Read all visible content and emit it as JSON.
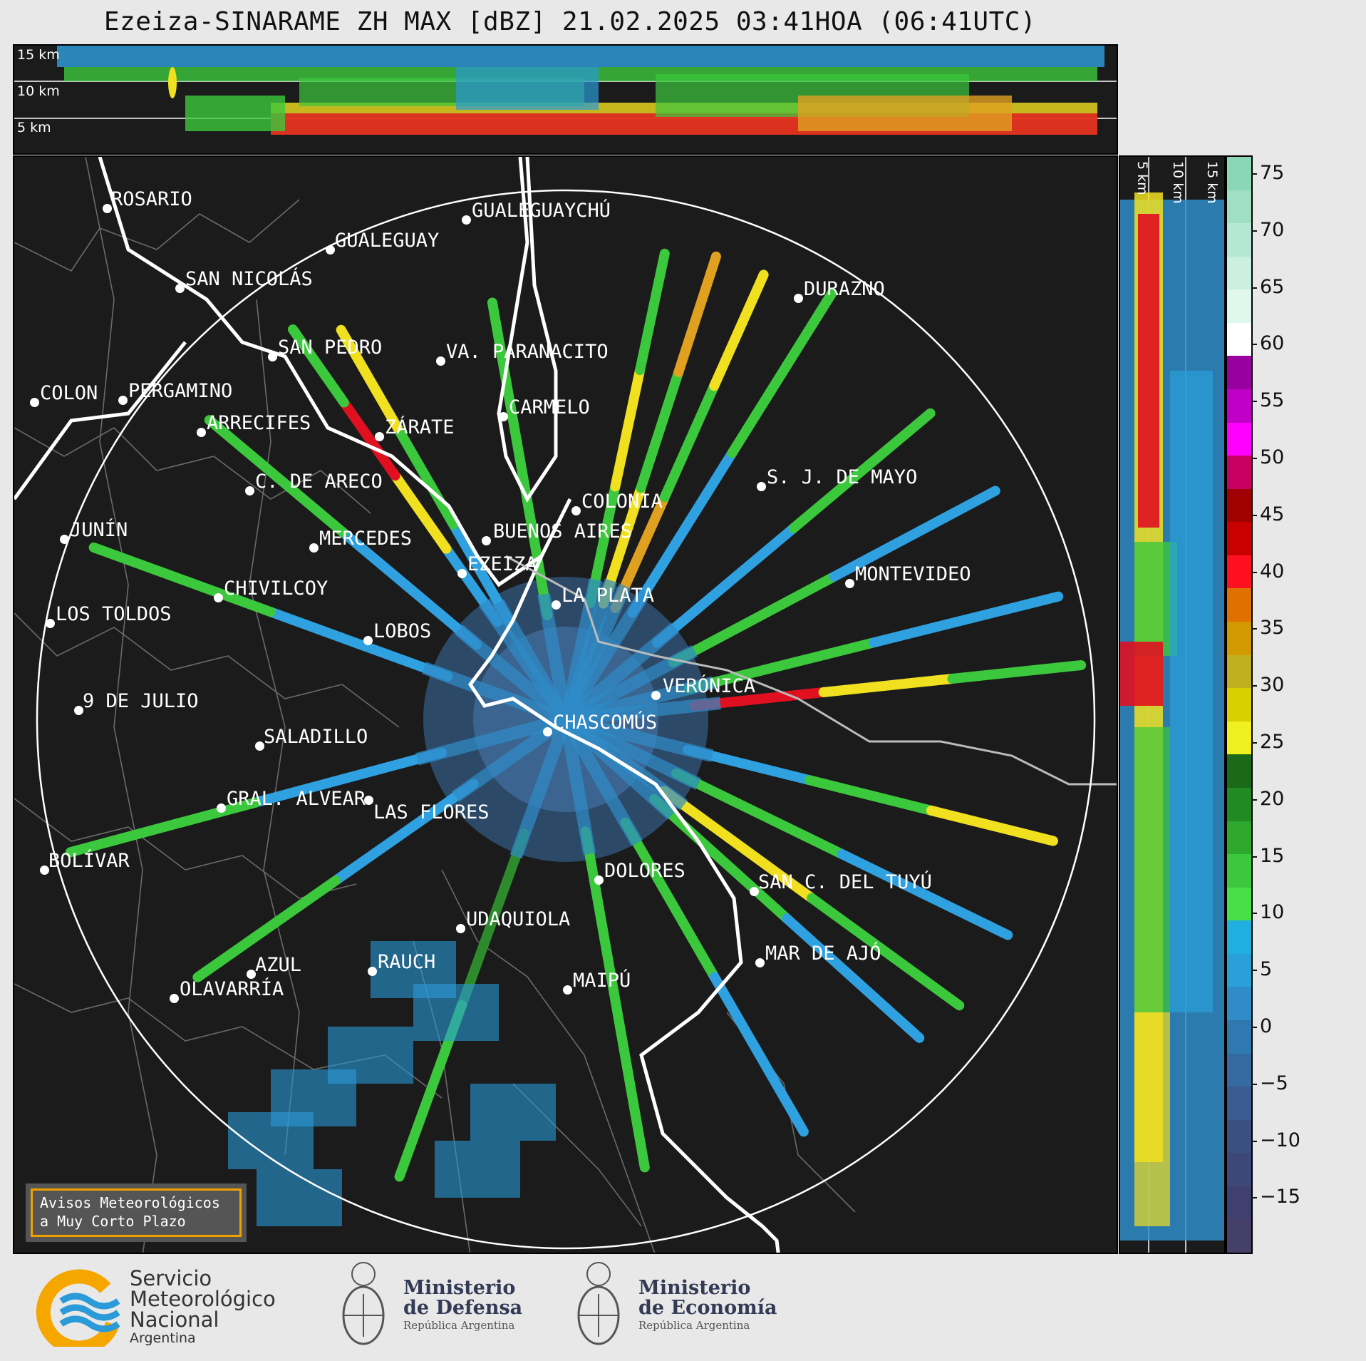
{
  "title": "Ezeiza-SINARAME ZH MAX [dBZ] 21.02.2025 03:41HOA (06:41UTC)",
  "top_panel": {
    "altitude_labels": [
      "15 km",
      "10 km",
      "5 km"
    ]
  },
  "side_panel": {
    "altitude_labels": [
      "5 km",
      "10 km",
      "15 km"
    ]
  },
  "colorbar": {
    "ticks": [
      "75",
      "70",
      "65",
      "60",
      "55",
      "50",
      "45",
      "40",
      "35",
      "30",
      "25",
      "20",
      "15",
      "10",
      "5",
      "0",
      "−5",
      "−10",
      "−15"
    ],
    "colors": [
      "#8ad7b5",
      "#9fe0c4",
      "#b4e8d2",
      "#cbf0e0",
      "#e0f7ee",
      "#ffffff",
      "#9900a0",
      "#c000c8",
      "#ff00ff",
      "#c80060",
      "#a00000",
      "#c80000",
      "#ff1020",
      "#e07000",
      "#d09a00",
      "#c0b020",
      "#d8d000",
      "#f0f020",
      "#1a6a1a",
      "#228a22",
      "#2ea82e",
      "#3cc83c",
      "#48e048",
      "#20b0e0",
      "#2aa0d8",
      "#2f8cc8",
      "#3078b0",
      "#356aa0",
      "#3a5c90",
      "#3c5080",
      "#3e4878",
      "#404070",
      "#444068"
    ]
  },
  "cities": [
    {
      "name": "ROSARIO"
    },
    {
      "name": "GUALEGUAYCHÚ"
    },
    {
      "name": "GUALEGUAY"
    },
    {
      "name": "SAN NICOLÁS"
    },
    {
      "name": "DURAZNO"
    },
    {
      "name": "SAN PEDRO"
    },
    {
      "name": "VA. PARANACITO"
    },
    {
      "name": "COLON"
    },
    {
      "name": "PERGAMINO"
    },
    {
      "name": "CARMELO"
    },
    {
      "name": "ARRECIFES"
    },
    {
      "name": "ZÁRATE"
    },
    {
      "name": "S. J. DE MAYO"
    },
    {
      "name": "C. DE ARECO"
    },
    {
      "name": "COLONIA"
    },
    {
      "name": "JUNÍN"
    },
    {
      "name": "BUENOS AIRES"
    },
    {
      "name": "MERCEDES"
    },
    {
      "name": "EZEIZA"
    },
    {
      "name": "MONTEVIDEO"
    },
    {
      "name": "CHIVILCOY"
    },
    {
      "name": "LA PLATA"
    },
    {
      "name": "LOS TOLDOS"
    },
    {
      "name": "LOBOS"
    },
    {
      "name": "VERÓNICA"
    },
    {
      "name": "9 DE JULIO"
    },
    {
      "name": "CHASCOMÚS"
    },
    {
      "name": "SALADILLO"
    },
    {
      "name": "GRAL. ALVEAR"
    },
    {
      "name": "LAS FLORES"
    },
    {
      "name": "BOLÍVAR"
    },
    {
      "name": "DOLORES"
    },
    {
      "name": "SAN C. DEL TUYÚ"
    },
    {
      "name": "UDAQUIOLA"
    },
    {
      "name": "AZUL"
    },
    {
      "name": "RAUCH"
    },
    {
      "name": "MAR DE AJÓ"
    },
    {
      "name": "OLAVARRÍA"
    },
    {
      "name": "MAIPÚ"
    }
  ],
  "warning_box": {
    "line1": "Avisos Meteorológicos",
    "line2": "a Muy Corto Plazo"
  },
  "footer": {
    "smn": {
      "line1": "Servicio",
      "line2": "Meteorológico",
      "line3": "Nacional",
      "line4": "Argentina"
    },
    "defensa": {
      "line1": "Ministerio",
      "line2": "de Defensa",
      "line3": "República Argentina"
    },
    "economia": {
      "line1": "Ministerio",
      "line2": "de Economía",
      "line3": "República Argentina"
    }
  }
}
